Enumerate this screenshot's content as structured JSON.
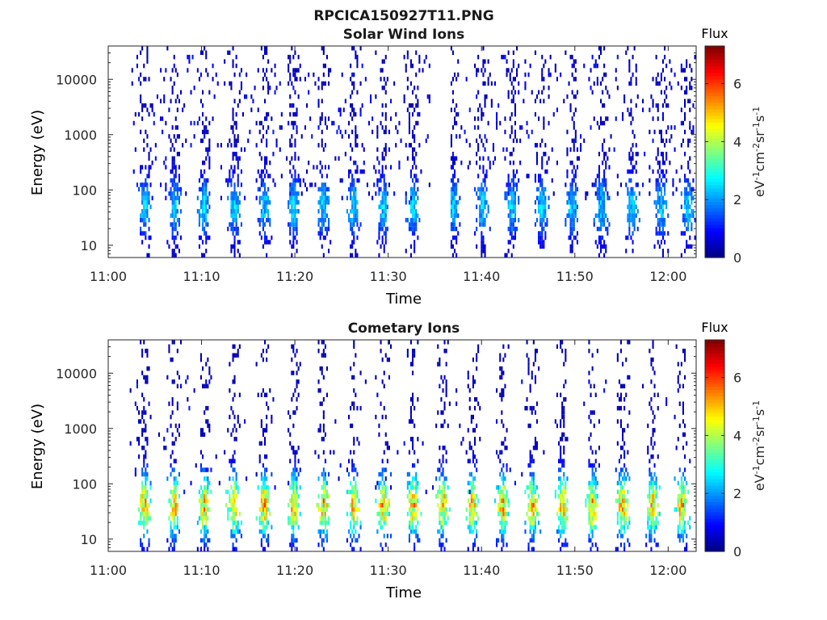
{
  "figure": {
    "title": "RPCICA150927T11.PNG"
  },
  "chart_data": [
    {
      "type": "heatmap",
      "title": "Solar Wind Ions",
      "xlabel": "Time",
      "ylabel": "Energy (eV)",
      "x_ticks": [
        "11:00",
        "11:10",
        "11:20",
        "11:30",
        "11:40",
        "11:50",
        "12:00"
      ],
      "xlim": [
        "11:00",
        "12:03"
      ],
      "y_scale": "log",
      "y_ticks": [
        "10",
        "100",
        "1000",
        "10000"
      ],
      "ylim": [
        6,
        40000
      ],
      "colorbar": {
        "title": "Flux",
        "label": "eV-1cm-2sr-1s-1",
        "ticks": [
          "0",
          "2",
          "4",
          "6"
        ],
        "range": [
          0,
          7.3
        ],
        "colormap": "jet"
      },
      "gap": {
        "start_min": 34.5,
        "end_min": 36.5
      },
      "bursts_min": [
        3.8,
        7.0,
        10.2,
        13.4,
        16.6,
        19.8,
        23.0,
        26.2,
        29.4,
        32.6,
        36.8,
        40.0,
        43.2,
        46.4,
        49.6,
        52.8,
        56.0,
        59.2,
        62.0
      ],
      "peak_energy_eV": 50,
      "peak_flux": 2.5,
      "background_max_energy_eV": 30000
    },
    {
      "type": "heatmap",
      "title": "Cometary Ions",
      "xlabel": "Time",
      "ylabel": "Energy (eV)",
      "x_ticks": [
        "11:00",
        "11:10",
        "11:20",
        "11:30",
        "11:40",
        "11:50",
        "12:00"
      ],
      "xlim": [
        "11:00",
        "12:03"
      ],
      "y_scale": "log",
      "y_ticks": [
        "10",
        "100",
        "1000",
        "10000"
      ],
      "ylim": [
        6,
        40000
      ],
      "colorbar": {
        "title": "Flux",
        "label": "eV-1cm-2sr-1s-1",
        "ticks": [
          "0",
          "2",
          "4",
          "6"
        ],
        "range": [
          0,
          7.3
        ],
        "colormap": "jet"
      },
      "bursts_min": [
        3.8,
        7.0,
        10.2,
        13.4,
        16.6,
        19.8,
        23.0,
        26.2,
        29.4,
        32.6,
        35.8,
        39.0,
        42.2,
        45.4,
        48.6,
        51.8,
        55.0,
        58.2,
        61.4
      ],
      "peak_energy_eV": 40,
      "peak_flux": 5.8,
      "background_max_energy_eV": 10000
    }
  ]
}
